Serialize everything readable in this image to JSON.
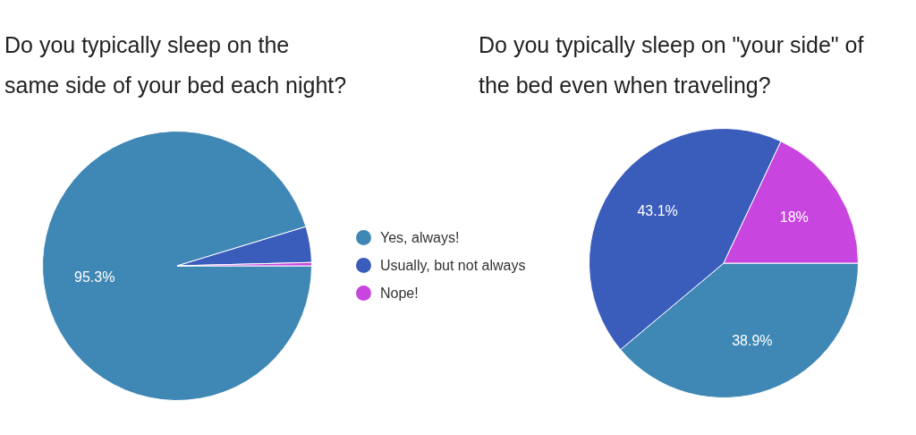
{
  "chart_data": [
    {
      "type": "pie",
      "title": "Do you typically sleep on the same side of your bed each night?",
      "categories": [
        "Yes, always!",
        "Usually, but not always",
        "Nope!"
      ],
      "values": [
        95.3,
        4.3,
        0.4
      ],
      "colors": [
        "#3f87b4",
        "#3a5cbb",
        "#c845df"
      ],
      "value_labels": [
        "95.3%",
        null,
        null
      ],
      "legend": "right"
    },
    {
      "type": "pie",
      "title": "Do you typically sleep on \"your side\" of the bed even when traveling?",
      "categories": [
        null,
        null,
        null
      ],
      "values": [
        38.9,
        43.1,
        18
      ],
      "colors": [
        "#3f87b4",
        "#3a5cbb",
        "#c845df"
      ],
      "value_labels": [
        "38.9%",
        "43.1%",
        "18%"
      ]
    }
  ]
}
